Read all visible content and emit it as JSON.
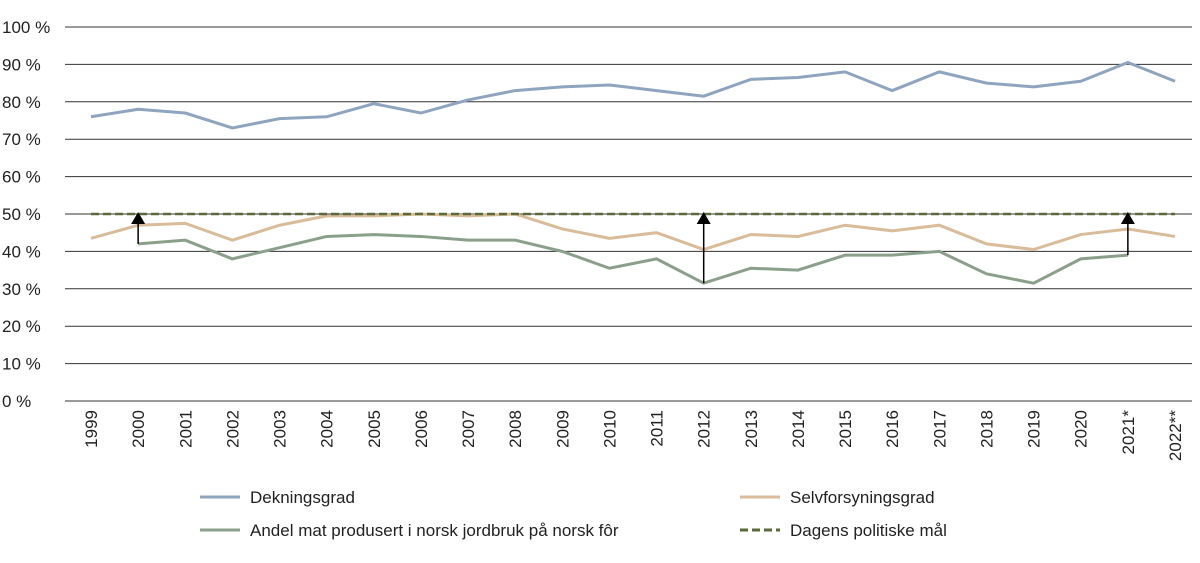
{
  "chart_data": {
    "type": "line",
    "categories": [
      "1999",
      "2000",
      "2001",
      "2002",
      "2003",
      "2004",
      "2005",
      "2006",
      "2007",
      "2008",
      "2009",
      "2010",
      "2011",
      "2012",
      "2013",
      "2014",
      "2015",
      "2016",
      "2017",
      "2018",
      "2019",
      "2020",
      "2021*",
      "2022**"
    ],
    "series": [
      {
        "name": "Dekningsgrad",
        "color": "#8fa5bf",
        "values": [
          76,
          78,
          77,
          73,
          75.5,
          76,
          79.5,
          77,
          80.5,
          83,
          84,
          84.5,
          83,
          81.5,
          86,
          86.5,
          88,
          83,
          88,
          85,
          84,
          85.5,
          90.5,
          85.5
        ]
      },
      {
        "name": "Selvforsyningsgrad",
        "color": "#d9bc9a",
        "values": [
          43.5,
          47,
          47.5,
          43,
          47,
          49.5,
          49.5,
          50,
          49.5,
          50,
          46,
          43.5,
          45,
          40.5,
          44.5,
          44,
          47,
          45.5,
          47,
          42,
          40.5,
          44.5,
          46,
          44
        ]
      },
      {
        "name": "Andel mat produsert i norsk jordbruk på norsk fôr",
        "color": "#8ba08a",
        "values": [
          null,
          42,
          43,
          38,
          41,
          44,
          44.5,
          44,
          43,
          43,
          40,
          35.5,
          38,
          31.5,
          35.5,
          35,
          39,
          39,
          40,
          34,
          31.5,
          38,
          39,
          null
        ]
      },
      {
        "name": "Dagens politiske mål",
        "color": "#5a6b3a",
        "dashed": true,
        "values": [
          50,
          50,
          50,
          50,
          50,
          50,
          50,
          50,
          50,
          50,
          50,
          50,
          50,
          50,
          50,
          50,
          50,
          50,
          50,
          50,
          50,
          50,
          50,
          50
        ]
      }
    ],
    "arrows": [
      "2000",
      "2012",
      "2021*"
    ],
    "ylim": [
      0,
      100
    ],
    "yticks": [
      {
        "value": 0,
        "label": "0 %"
      },
      {
        "value": 10,
        "label": "10 %"
      },
      {
        "value": 20,
        "label": "20 %"
      },
      {
        "value": 30,
        "label": "30 %"
      },
      {
        "value": 40,
        "label": "40 %"
      },
      {
        "value": 50,
        "label": "50 %"
      },
      {
        "value": 60,
        "label": "60 %"
      },
      {
        "value": 70,
        "label": "70 %"
      },
      {
        "value": 80,
        "label": "80 %"
      },
      {
        "value": 90,
        "label": "90 %"
      },
      {
        "value": 100,
        "label": "100 %"
      }
    ],
    "grid": true
  }
}
